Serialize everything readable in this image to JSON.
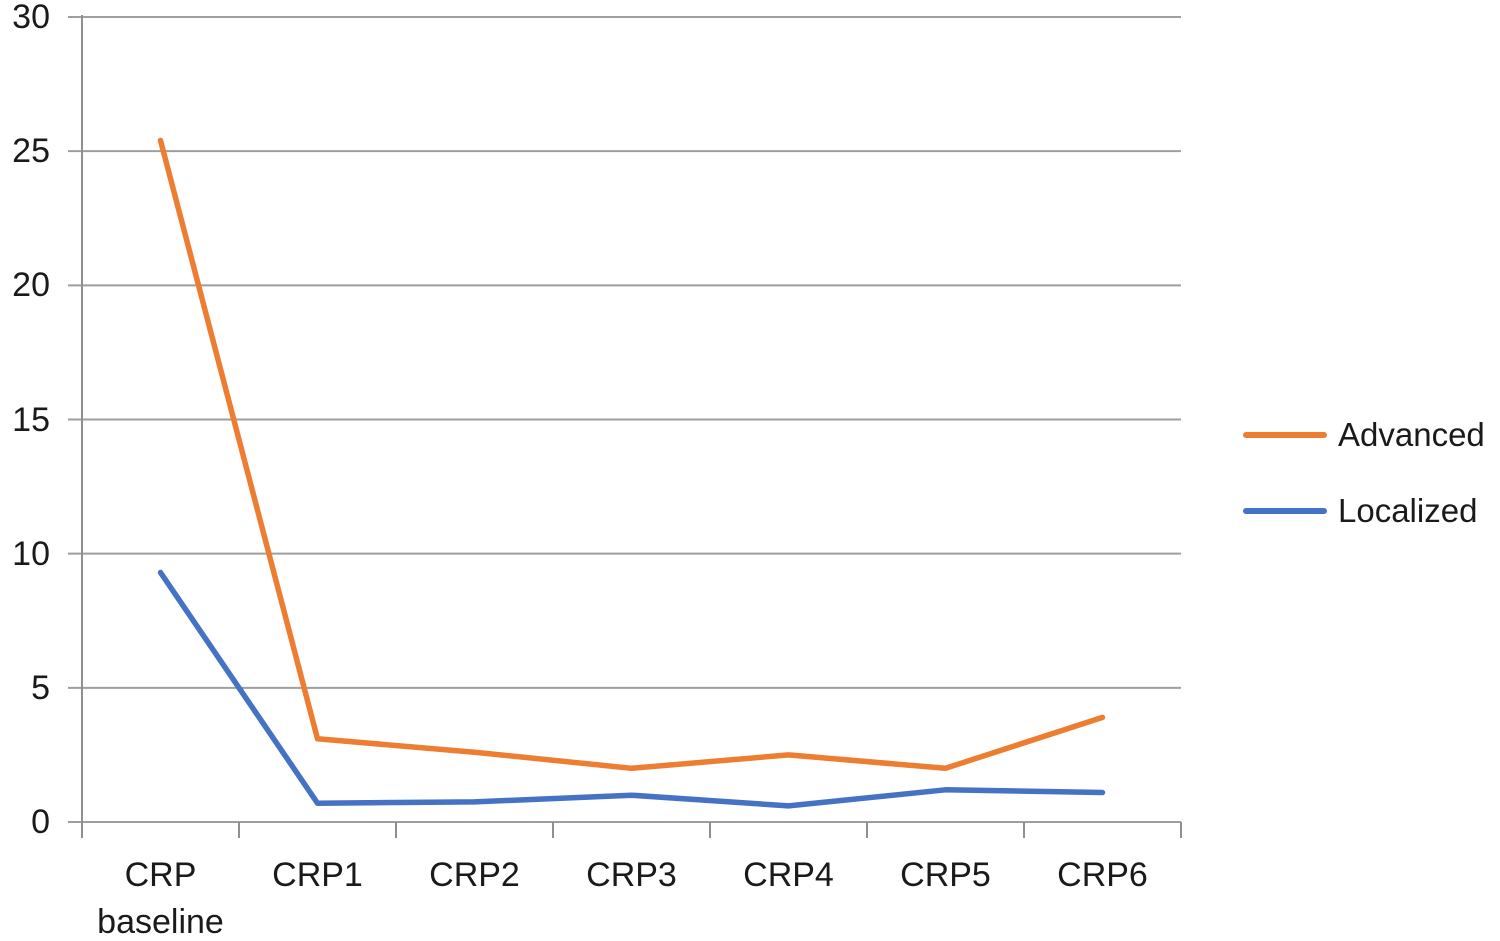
{
  "chart_data": {
    "type": "line",
    "categories": [
      "CRP baseline",
      "CRP1",
      "CRP2",
      "CRP3",
      "CRP4",
      "CRP5",
      "CRP6"
    ],
    "series": [
      {
        "name": "Advanced",
        "color": "#ED7D31",
        "values": [
          25.4,
          3.1,
          2.6,
          2.0,
          2.5,
          2.0,
          3.9
        ]
      },
      {
        "name": "Localized",
        "color": "#4472C4",
        "values": [
          9.3,
          0.7,
          0.75,
          1.0,
          0.6,
          1.2,
          1.1
        ]
      }
    ],
    "title": "",
    "xlabel": "",
    "ylabel": "",
    "ylim": [
      0,
      30
    ],
    "y_ticks": [
      0,
      5,
      10,
      15,
      20,
      25,
      30
    ],
    "grid": "horizontal-only",
    "legend_position": "right-middle"
  },
  "style": {
    "gridline_color": "#9e9e9e",
    "axis_color": "#8f8f8f",
    "label_color": "#1a1a1a",
    "background_color": "#ffffff"
  }
}
